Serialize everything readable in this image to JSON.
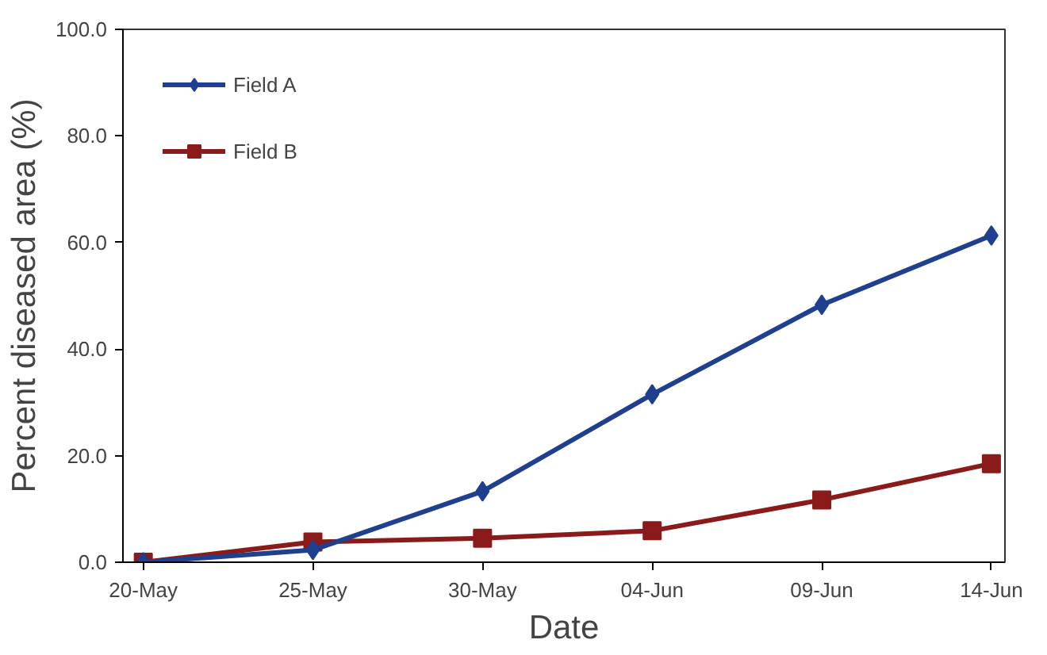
{
  "chart_data": {
    "type": "line",
    "xlabel": "Date",
    "ylabel": "Percent diseased area (%)",
    "categories": [
      "20-May",
      "25-May",
      "30-May",
      "04-Jun",
      "09-Jun",
      "14-Jun"
    ],
    "series": [
      {
        "name": "Field A",
        "color": "#1f3f8f",
        "marker": "diamond",
        "values": [
          0,
          2.3,
          13.3,
          31.5,
          48.3,
          61.3
        ]
      },
      {
        "name": "Field B",
        "color": "#8b1a1a",
        "marker": "square",
        "values": [
          0,
          3.8,
          4.5,
          5.9,
          11.7,
          18.5
        ]
      }
    ],
    "ylim": [
      0,
      100
    ],
    "yticks": [
      {
        "value": 0,
        "label": "0.0"
      },
      {
        "value": 20,
        "label": "20.0"
      },
      {
        "value": 40,
        "label": "40.0"
      },
      {
        "value": 60,
        "label": "60.0"
      },
      {
        "value": 80,
        "label": "80.0"
      },
      {
        "value": 100,
        "label": "100.0"
      }
    ],
    "grid": false,
    "legend": "top left",
    "line_style": "solid"
  }
}
